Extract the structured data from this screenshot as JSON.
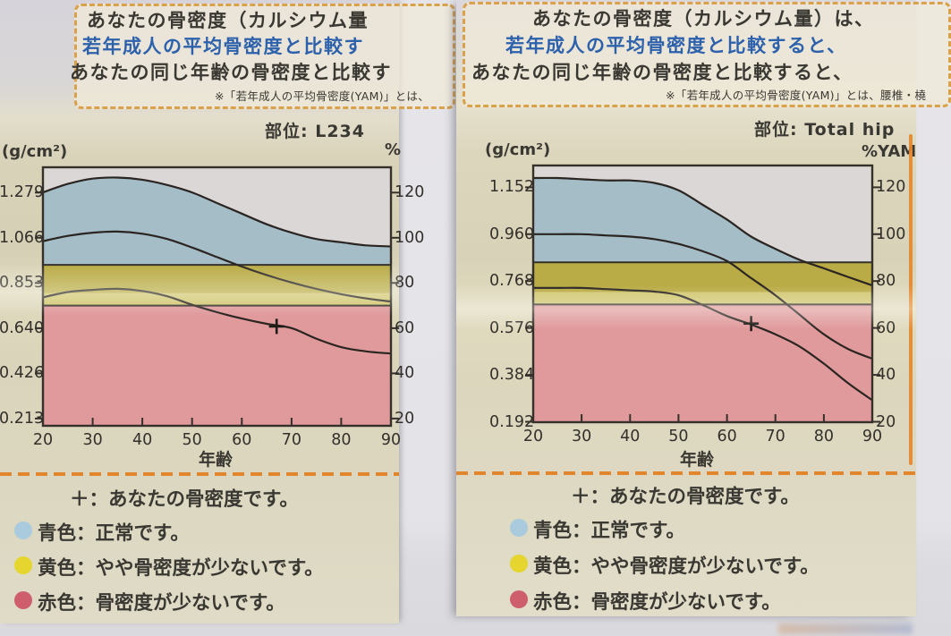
{
  "document": {
    "panels": [
      {
        "header": {
          "line1": "あなたの骨密度（カルシウム量",
          "line2": "若年成人の平均骨密度と比較す",
          "line3": "あなたの同じ年齢の骨密度と比較す",
          "footnote": "※「若年成人の平均骨密度(YAM)」とは、"
        },
        "site_label": "部位: L234",
        "axis_unit_left": "(g/cm²)",
        "axis_unit_right": "%",
        "xlabel": "年齢",
        "legend": {
          "marker": "＋：あなたの骨密度です。",
          "blue": "青色：正常です。",
          "yellow": "黄色：やや骨密度が少ないです。",
          "red": "赤色：骨密度が少ないです。"
        }
      },
      {
        "header": {
          "line1": "あなたの骨密度（カルシウム量）は、",
          "line2": "若年成人の平均骨密度と比較すると、",
          "line3": "あなたの同じ年齢の骨密度と比較すると、",
          "footnote": "※「若年成人の平均骨密度(YAM)」とは、腰椎・橈"
        },
        "site_label": "部位: Total hip",
        "axis_unit_left": "(g/cm²)",
        "axis_unit_right": "%YAM",
        "xlabel": "年齢",
        "legend": {
          "marker": "＋：あなたの骨密度です。",
          "blue": "青色：正常です。",
          "yellow": "黄色：やや骨密度が少ないです。",
          "red": "赤色：骨密度が少ないです。"
        }
      }
    ]
  },
  "colors": {
    "band_blue": "#a4bdc7",
    "band_yellow": "#b9ab45",
    "band_red": "#e09a9c",
    "plot_bg": "#dad7d6",
    "curve": "#2b2521",
    "axis": "#35302a",
    "legend_dot_blue": "#a9cbdd",
    "legend_dot_yellow": "#e6d52f",
    "legend_dot_red": "#ce5e6c",
    "header_blue_text": "#2d61ab",
    "dashed_orange": "#e2862e",
    "text": "#3a3832"
  },
  "chart_data": [
    {
      "type": "area",
      "title": "部位: L234",
      "xlabel": "年齢",
      "ylabel_left": "(g/cm²)",
      "ylabel_right": "%",
      "xlim": [
        20,
        90
      ],
      "x_ticks": [
        20,
        30,
        40,
        50,
        60,
        70,
        80,
        90
      ],
      "y_ticks_gcm2": [
        "1.279",
        "1.066",
        "0.853",
        "0.640",
        "0.426",
        "0.213"
      ],
      "y_ticks_pct": [
        120,
        100,
        80,
        60,
        40,
        20
      ],
      "ylim_pct": [
        16.8,
        131.2
      ],
      "yam_gcm2": 1.066,
      "bands_pct": {
        "normal_above": 88,
        "caution_above": 70
      },
      "band_meaning": {
        "blue": "正常",
        "yellow": "やや骨密度が少ない",
        "red": "骨密度が少ない"
      },
      "ages": [
        20,
        25,
        30,
        35,
        40,
        45,
        50,
        55,
        60,
        65,
        70,
        75,
        80,
        85,
        90
      ],
      "series": [
        {
          "name": "upper_normal_limit",
          "values_gcm2": [
            1.28,
            1.32,
            1.345,
            1.35,
            1.34,
            1.315,
            1.28,
            1.23,
            1.18,
            1.13,
            1.09,
            1.06,
            1.045,
            1.03,
            1.025
          ]
        },
        {
          "name": "age_matched_mean",
          "values_gcm2": [
            1.05,
            1.075,
            1.09,
            1.095,
            1.085,
            1.06,
            1.02,
            0.975,
            0.93,
            0.89,
            0.855,
            0.825,
            0.8,
            0.78,
            0.765
          ]
        },
        {
          "name": "lower_normal_limit",
          "values_gcm2": [
            0.785,
            0.81,
            0.82,
            0.825,
            0.815,
            0.79,
            0.75,
            0.715,
            0.685,
            0.66,
            0.64,
            0.59,
            0.55,
            0.53,
            0.52
          ]
        }
      ],
      "patient_marker": {
        "age": 67,
        "value_gcm2": 0.648
      }
    },
    {
      "type": "area",
      "title": "部位: Total hip",
      "xlabel": "年齢",
      "ylabel_left": "(g/cm²)",
      "ylabel_right": "%YAM",
      "xlim": [
        20,
        90
      ],
      "x_ticks": [
        20,
        30,
        40,
        50,
        60,
        70,
        80,
        90
      ],
      "y_ticks_gcm2": [
        "1.152",
        "0.960",
        "0.768",
        "0.576",
        "0.384",
        "0.192"
      ],
      "y_ticks_pct": [
        120,
        100,
        80,
        60,
        40,
        20
      ],
      "ylim_pct": [
        19.8,
        129.3
      ],
      "yam_gcm2": 0.96,
      "bands_pct": {
        "normal_above": 88,
        "caution_above": 70
      },
      "band_meaning": {
        "blue": "正常",
        "yellow": "やや骨密度が少ない",
        "red": "骨密度が少ない"
      },
      "ages": [
        20,
        25,
        30,
        35,
        40,
        45,
        50,
        55,
        60,
        65,
        70,
        75,
        80,
        85,
        90
      ],
      "series": [
        {
          "name": "upper_normal_limit",
          "values_gcm2": [
            1.19,
            1.19,
            1.185,
            1.18,
            1.18,
            1.17,
            1.14,
            1.08,
            1.02,
            0.95,
            0.9,
            0.855,
            0.82,
            0.785,
            0.75
          ]
        },
        {
          "name": "age_matched_mean",
          "values_gcm2": [
            0.96,
            0.96,
            0.96,
            0.955,
            0.95,
            0.94,
            0.92,
            0.89,
            0.85,
            0.78,
            0.71,
            0.63,
            0.55,
            0.49,
            0.45
          ]
        },
        {
          "name": "lower_normal_limit",
          "values_gcm2": [
            0.74,
            0.74,
            0.74,
            0.735,
            0.73,
            0.725,
            0.71,
            0.67,
            0.625,
            0.59,
            0.55,
            0.5,
            0.43,
            0.35,
            0.28
          ]
        }
      ],
      "patient_marker": {
        "age": 65,
        "value_gcm2": 0.594
      }
    }
  ]
}
